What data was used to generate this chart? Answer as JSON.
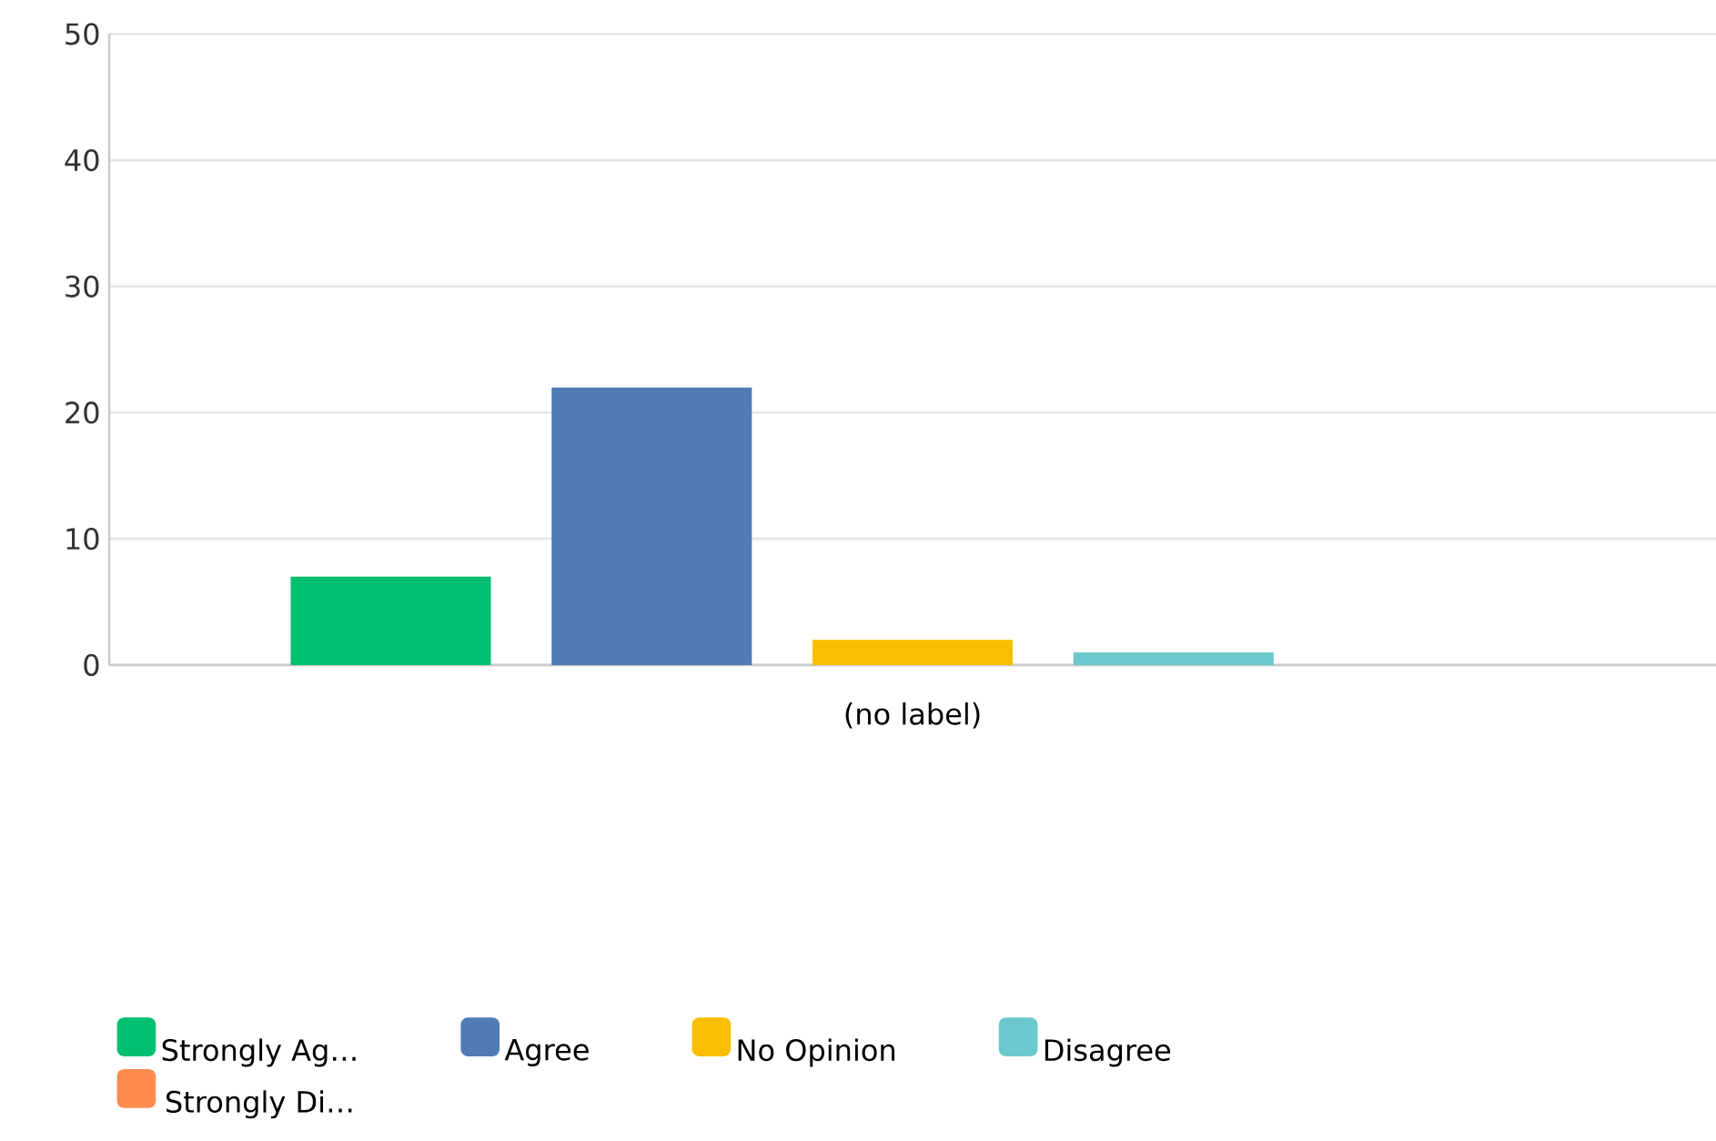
{
  "chart_data": {
    "type": "bar",
    "xlabel": "(no label)",
    "categories": [
      null
    ],
    "series": [
      {
        "name": "Strongly Ag…",
        "color": "#00bf6f",
        "values": [
          7
        ]
      },
      {
        "name": "Agree",
        "color": "#507cb6",
        "values": [
          22
        ]
      },
      {
        "name": "No Opinion",
        "color": "#f9be00",
        "values": [
          2
        ]
      },
      {
        "name": "Disagree",
        "color": "#6bc8cd",
        "values": [
          1
        ]
      },
      {
        "name": "Strongly Di…",
        "color": "#ff8b4f",
        "values": [
          0
        ]
      }
    ],
    "ylim": [
      0,
      50
    ],
    "yticks": [
      0,
      10,
      20,
      30,
      40,
      50
    ],
    "grid": "y",
    "legend": "bottom"
  }
}
